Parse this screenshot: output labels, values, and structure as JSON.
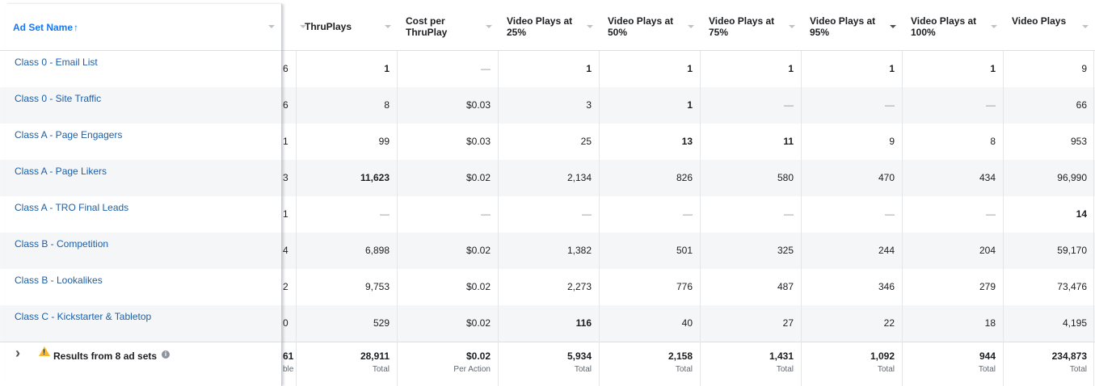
{
  "header": {
    "ad_set_name": "Ad Set Name",
    "sort_arrow": "↑",
    "columns": [
      {
        "label": "ThruPlays"
      },
      {
        "label": "Cost per ThruPlay"
      },
      {
        "label": "Video Plays at 25%"
      },
      {
        "label": "Video Plays at 50%"
      },
      {
        "label": "Video Plays at 75%"
      },
      {
        "label": "Video Plays at 95%"
      },
      {
        "label": "Video Plays at 100%"
      },
      {
        "label": "Video Plays"
      }
    ]
  },
  "rows": [
    {
      "name": "Class 0 - Email List",
      "edge": "6",
      "cells": [
        "1",
        "—",
        "1",
        "1",
        "1",
        "1",
        "1",
        "9"
      ]
    },
    {
      "name": "Class 0 - Site Traffic",
      "edge": "6",
      "cells": [
        "8",
        "$0.03",
        "3",
        "1",
        "—",
        "—",
        "—",
        "66"
      ]
    },
    {
      "name": "Class A - Page Engagers",
      "edge": "1",
      "cells": [
        "99",
        "$0.03",
        "25",
        "13",
        "11",
        "9",
        "8",
        "953"
      ]
    },
    {
      "name": "Class A - Page Likers",
      "edge": "3",
      "cells": [
        "11,623",
        "$0.02",
        "2,134",
        "826",
        "580",
        "470",
        "434",
        "96,990"
      ]
    },
    {
      "name": "Class A - TRO Final Leads",
      "edge": "1",
      "cells": [
        "—",
        "—",
        "—",
        "—",
        "—",
        "—",
        "—",
        "14"
      ]
    },
    {
      "name": "Class B - Competition",
      "edge": "4",
      "cells": [
        "6,898",
        "$0.02",
        "1,382",
        "501",
        "325",
        "244",
        "204",
        "59,170"
      ]
    },
    {
      "name": "Class B - Lookalikes",
      "edge": "2",
      "cells": [
        "9,753",
        "$0.02",
        "2,273",
        "776",
        "487",
        "346",
        "279",
        "73,476"
      ]
    },
    {
      "name": "Class C - Kickstarter & Tabletop",
      "edge": "0",
      "cells": [
        "529",
        "$0.02",
        "116",
        "40",
        "27",
        "22",
        "18",
        "4,195"
      ]
    }
  ],
  "summary": {
    "label": "Results from 8 ad sets",
    "expand_icon": "chevron-right-icon",
    "warning_icon": "warning-icon",
    "info_icon": "info-icon",
    "edge_value": "61",
    "edge_sub": "ble",
    "cells": [
      {
        "value": "28,911",
        "sub": "Total"
      },
      {
        "value": "$0.02",
        "sub": "Per Action"
      },
      {
        "value": "5,934",
        "sub": "Total"
      },
      {
        "value": "2,158",
        "sub": "Total"
      },
      {
        "value": "1,431",
        "sub": "Total"
      },
      {
        "value": "1,092",
        "sub": "Total"
      },
      {
        "value": "944",
        "sub": "Total"
      },
      {
        "value": "234,873",
        "sub": "Total"
      }
    ]
  },
  "colors": {
    "link": "#1d5fa8",
    "accent": "#1877f2",
    "row_alt": "#f5f6f7",
    "warning": "#f7b928"
  }
}
